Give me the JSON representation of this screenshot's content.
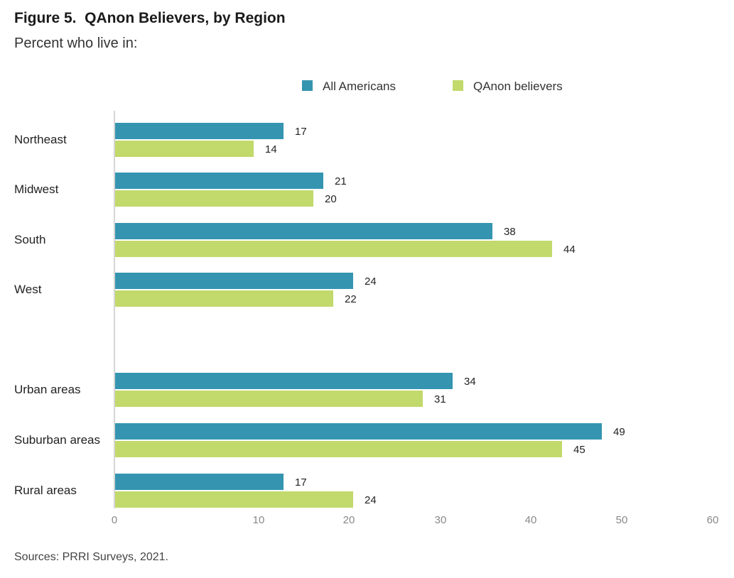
{
  "figure": {
    "title": "Figure 5.  QAnon Believers, by Region",
    "subtitle": "Percent who live in:",
    "source": "Sources: PRRI Surveys, 2021."
  },
  "chart_data": {
    "type": "bar",
    "orientation": "horizontal",
    "title": "Figure 5.  QAnon Believers, by Region",
    "subtitle": "Percent who live in:",
    "categories": [
      "Northeast",
      "Midwest",
      "South",
      "West",
      "Urban areas",
      "Suburban areas",
      "Rural areas"
    ],
    "groups": [
      [
        "Northeast",
        "Midwest",
        "South",
        "West"
      ],
      [
        "Urban areas",
        "Suburban areas",
        "Rural areas"
      ]
    ],
    "series": [
      {
        "name": "All Americans",
        "color": "#3595b0",
        "values": [
          17,
          21,
          38,
          24,
          34,
          49,
          17
        ]
      },
      {
        "name": "QAnon believers",
        "color": "#c2d96b",
        "values": [
          14,
          20,
          44,
          22,
          31,
          45,
          24
        ]
      }
    ],
    "xlim": [
      0,
      60
    ],
    "xticks": [
      "0",
      "10",
      "20",
      "30",
      "40",
      "50",
      "60"
    ],
    "xlabel": "",
    "ylabel": "",
    "grid": false,
    "legend": "top",
    "source": "Sources: PRRI Surveys, 2021."
  }
}
